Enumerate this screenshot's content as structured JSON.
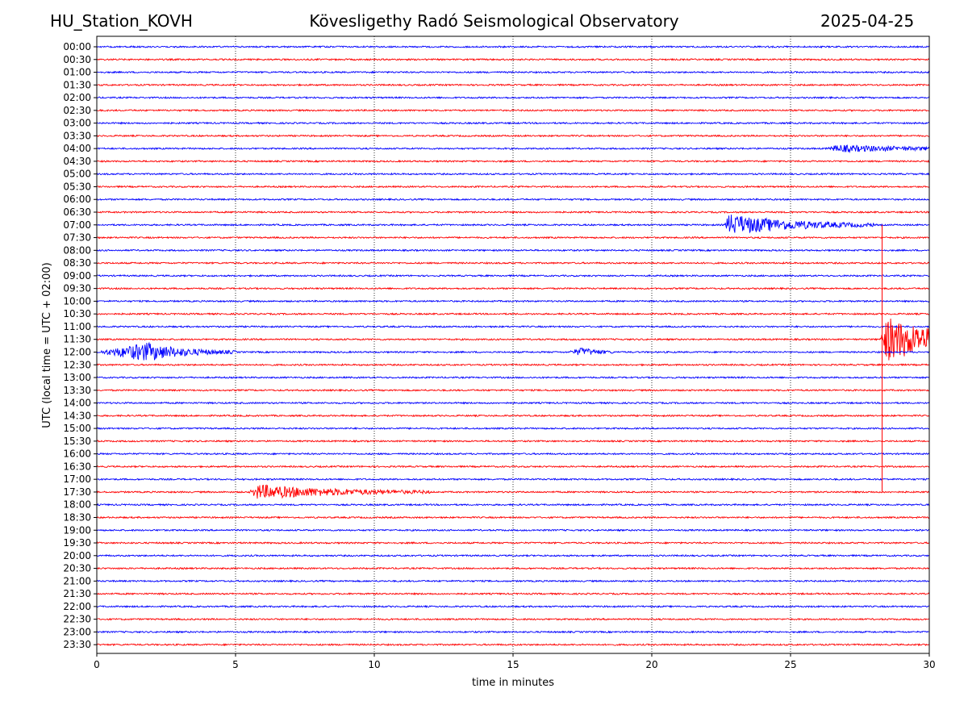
{
  "header": {
    "station": "HU_Station_KOVH",
    "title": "Kövesligethy Radó Seismological Observatory",
    "date": "2025-04-25"
  },
  "chart_data": {
    "type": "line",
    "title": "Kövesligethy Radó Seismological Observatory",
    "xlabel": "time in minutes",
    "ylabel": "UTC (local time = UTC + 02:00)",
    "xlim": [
      0,
      30
    ],
    "x_ticks": [
      "0",
      "5",
      "10",
      "15",
      "20",
      "25",
      "30"
    ],
    "grid": "vertical dotted lines at 5-minute ticks",
    "trace_colors": [
      "#0000ff",
      "#ff0000"
    ],
    "rows": [
      "00:00",
      "00:30",
      "01:00",
      "01:30",
      "02:00",
      "02:30",
      "03:00",
      "03:30",
      "04:00",
      "04:30",
      "05:00",
      "05:30",
      "06:00",
      "06:30",
      "07:00",
      "07:30",
      "08:00",
      "08:30",
      "09:00",
      "09:30",
      "10:00",
      "10:30",
      "11:00",
      "11:30",
      "12:00",
      "12:30",
      "13:00",
      "13:30",
      "14:00",
      "14:30",
      "15:00",
      "15:30",
      "16:00",
      "16:30",
      "17:00",
      "17:30",
      "18:00",
      "18:30",
      "19:00",
      "19:30",
      "20:00",
      "20:30",
      "21:00",
      "21:30",
      "22:00",
      "22:30",
      "23:00",
      "23:30"
    ],
    "events": [
      {
        "row": "04:00",
        "start_min": 26.3,
        "end_min": 30,
        "peak": 0.5,
        "attack": 0.4,
        "decay": 3.0
      },
      {
        "row": "07:00",
        "start_min": 22.6,
        "end_min": 28.0,
        "peak": 1.6,
        "attack": 0.2,
        "decay": 2.4
      },
      {
        "row": "11:30",
        "start_min": 28.2,
        "end_min": 30,
        "peak": 3.5,
        "attack": 0.3,
        "decay": 2.0
      },
      {
        "row": "12:00",
        "start_min": 0,
        "end_min": 5.0,
        "peak": 1.4,
        "attack": 1.8,
        "decay": 1.4
      },
      {
        "row": "12:00",
        "start_min": 17.0,
        "end_min": 18.6,
        "peak": 0.6,
        "attack": 0.5,
        "decay": 0.6
      },
      {
        "row": "17:30",
        "start_min": 5.5,
        "end_min": 12.0,
        "peak": 1.1,
        "attack": 0.3,
        "decay": 3.0
      }
    ],
    "spikes": [
      {
        "row": "11:30",
        "minute": 28.3,
        "top_row": "07:00",
        "bottom_row": "17:30"
      }
    ],
    "noise_level": 0.12
  }
}
